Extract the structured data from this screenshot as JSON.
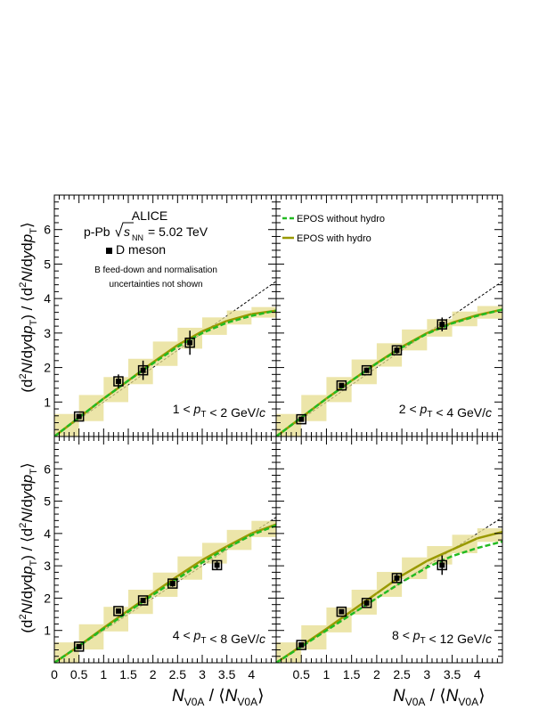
{
  "figure": {
    "experiment": "ALICE",
    "system_prefix": "p-Pb",
    "energy_value": "= 5.02 TeV",
    "energy_sub": "NN",
    "marker_label": "D meson",
    "note_line1": "B feed-down and normalisation",
    "note_line2": "uncertainties not shown",
    "ylabel": "(d²N/dydp_T) / ⟨d²N/dydp_T⟩",
    "xlabel": "N_V0A / ⟨N_V0A⟩",
    "legend": [
      "EPOS without hydro",
      "EPOS with hydro"
    ]
  },
  "colors": {
    "epos_without_hydro": "#22bb22",
    "epos_with_hydro": "#999900",
    "data": "#000000",
    "band_fill": "#e6dc8c"
  },
  "chart_data": [
    {
      "type": "scatter",
      "panel": "top-left",
      "pt_range": "1 < p_T < 2 GeV/c",
      "pt_low": "1",
      "pt_high": "2",
      "xlim": [
        0,
        4.5
      ],
      "ylim": [
        0,
        7
      ],
      "x": [
        0.5,
        1.3,
        1.8,
        2.75
      ],
      "y": [
        0.58,
        1.6,
        1.92,
        2.72
      ],
      "yerr": [
        0.05,
        0.2,
        0.28,
        0.35
      ],
      "reference_line": "dashed y = x",
      "epos_without_hydro_x": [
        0.0,
        0.5,
        1.0,
        1.5,
        2.0,
        2.5,
        3.0,
        3.5,
        4.0,
        4.5
      ],
      "epos_without_hydro_y": [
        0.0,
        0.55,
        1.1,
        1.62,
        2.12,
        2.6,
        3.0,
        3.3,
        3.5,
        3.65
      ],
      "epos_with_hydro_x": [
        0.0,
        0.5,
        1.0,
        1.5,
        2.0,
        2.5,
        3.0,
        3.5,
        4.0,
        4.5
      ],
      "epos_with_hydro_y": [
        0.0,
        0.55,
        1.1,
        1.62,
        2.15,
        2.65,
        3.05,
        3.35,
        3.55,
        3.65
      ]
    },
    {
      "type": "scatter",
      "panel": "top-right",
      "pt_range": "2 < p_T < 4 GeV/c",
      "pt_low": "2",
      "pt_high": "4",
      "xlim": [
        0,
        4.5
      ],
      "ylim": [
        0,
        7
      ],
      "x": [
        0.5,
        1.3,
        1.8,
        2.4,
        3.3
      ],
      "y": [
        0.5,
        1.48,
        1.92,
        2.5,
        3.25
      ],
      "yerr": [
        0.04,
        0.07,
        0.08,
        0.1,
        0.2
      ],
      "reference_line": "dashed y = x",
      "epos_without_hydro_x": [
        0.0,
        0.5,
        1.0,
        1.5,
        2.0,
        2.5,
        3.0,
        3.5,
        4.0,
        4.5
      ],
      "epos_without_hydro_y": [
        0.0,
        0.55,
        1.1,
        1.62,
        2.12,
        2.58,
        2.98,
        3.28,
        3.5,
        3.68
      ],
      "epos_with_hydro_x": [
        0.0,
        0.5,
        1.0,
        1.5,
        2.0,
        2.5,
        3.0,
        3.5,
        4.0,
        4.5
      ],
      "epos_with_hydro_y": [
        0.0,
        0.55,
        1.1,
        1.62,
        2.13,
        2.6,
        3.0,
        3.3,
        3.52,
        3.68
      ]
    },
    {
      "type": "scatter",
      "panel": "bottom-left",
      "pt_range": "4 < p_T < 8 GeV/c",
      "pt_low": "4",
      "pt_high": "8",
      "xlim": [
        0,
        4.5
      ],
      "ylim": [
        0,
        7
      ],
      "x": [
        0.5,
        1.3,
        1.8,
        2.4,
        3.3
      ],
      "y": [
        0.5,
        1.6,
        1.93,
        2.45,
        3.02
      ],
      "yerr": [
        0.05,
        0.06,
        0.08,
        0.1,
        0.15
      ],
      "reference_line": "dashed y = x",
      "epos_without_hydro_x": [
        0.0,
        0.5,
        1.0,
        1.5,
        2.0,
        2.5,
        3.0,
        3.5,
        4.0,
        4.5
      ],
      "epos_without_hydro_y": [
        0.0,
        0.52,
        1.05,
        1.58,
        2.1,
        2.6,
        3.1,
        3.55,
        3.95,
        4.25
      ],
      "epos_with_hydro_x": [
        0.0,
        0.5,
        1.0,
        1.5,
        2.0,
        2.5,
        3.0,
        3.5,
        4.0,
        4.5
      ],
      "epos_with_hydro_y": [
        0.0,
        0.52,
        1.08,
        1.62,
        2.15,
        2.68,
        3.18,
        3.6,
        4.0,
        4.28
      ]
    },
    {
      "type": "scatter",
      "panel": "bottom-right",
      "pt_range": "8 < p_T < 12 GeV/c",
      "pt_low": "8",
      "pt_high": "12",
      "xlim": [
        0,
        4.5
      ],
      "ylim": [
        0,
        7
      ],
      "x": [
        0.5,
        1.3,
        1.8,
        2.4,
        3.3
      ],
      "y": [
        0.55,
        1.58,
        1.85,
        2.62,
        3.02
      ],
      "yerr": [
        0.06,
        0.07,
        0.1,
        0.15,
        0.3
      ],
      "reference_line": "dashed y = x",
      "epos_without_hydro_x": [
        0.0,
        0.5,
        1.0,
        1.5,
        2.0,
        2.5,
        3.0,
        3.5,
        4.0,
        4.5
      ],
      "epos_without_hydro_y": [
        0.0,
        0.5,
        1.0,
        1.5,
        2.0,
        2.5,
        2.95,
        3.3,
        3.55,
        3.75
      ],
      "epos_with_hydro_x": [
        0.0,
        0.5,
        1.0,
        1.5,
        2.0,
        2.5,
        3.0,
        3.5,
        4.0,
        4.5
      ],
      "epos_with_hydro_y": [
        0.0,
        0.52,
        1.05,
        1.6,
        2.15,
        2.7,
        3.15,
        3.5,
        3.85,
        4.05
      ]
    }
  ],
  "x_ticks": [
    "0",
    "0.5",
    "1",
    "1.5",
    "2",
    "2.5",
    "3",
    "3.5",
    "4"
  ],
  "x_ticks_right": [
    "0.5",
    "1",
    "1.5",
    "2",
    "2.5",
    "3",
    "3.5",
    "4"
  ],
  "y_ticks": [
    "1",
    "2",
    "3",
    "4",
    "5",
    "6"
  ]
}
